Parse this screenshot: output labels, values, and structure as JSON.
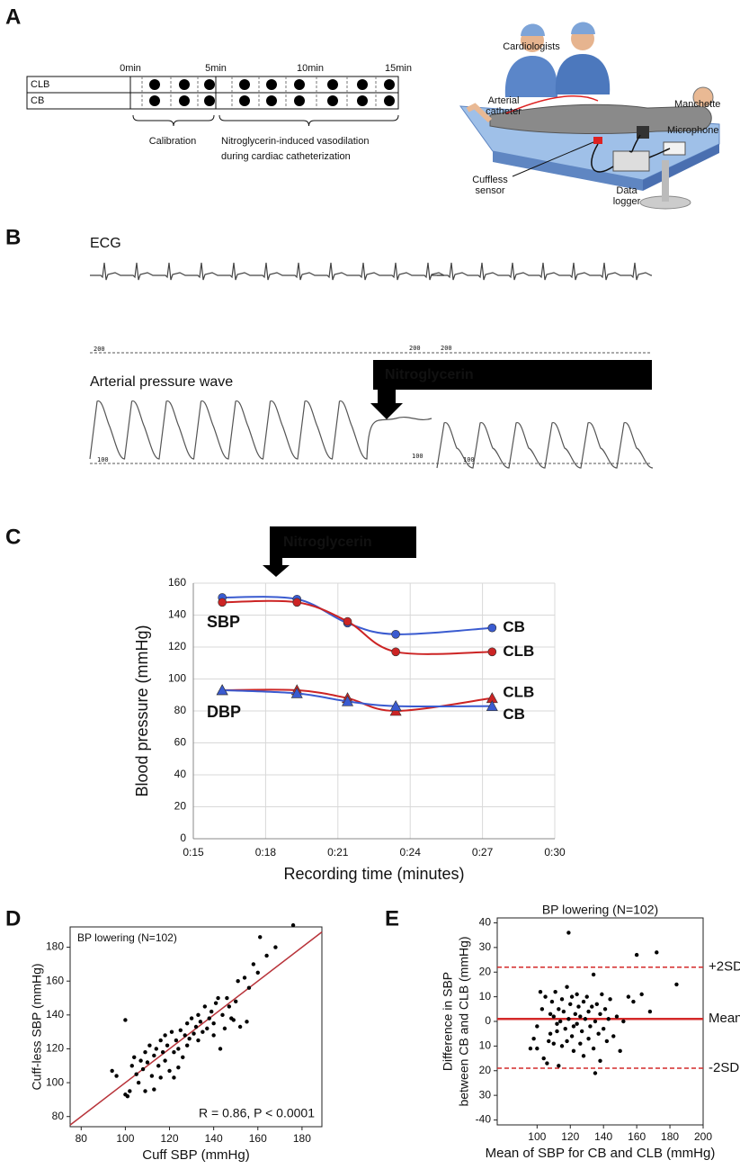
{
  "panel_labels": [
    "A",
    "B",
    "C",
    "D",
    "E"
  ],
  "panel_a": {
    "timeline": {
      "rows": [
        "CLB",
        "CB"
      ],
      "times": [
        "0min",
        "5min",
        "10min",
        "15min"
      ],
      "phases": [
        [
          "Calibration"
        ],
        [
          "Nitroglycerin-induced vasodilation",
          "during cardiac catheterization"
        ]
      ]
    },
    "illustration_labels": [
      [
        "Cardiologists"
      ],
      [
        "Arterial",
        "catheter"
      ],
      [
        "Manchette"
      ],
      [
        "Microphone"
      ],
      [
        "Cuffless",
        "sensor"
      ],
      [
        "Data",
        "logger"
      ]
    ]
  },
  "panel_b": {
    "ecg_label": "ECG",
    "ecg_scale": [
      "200",
      "200",
      "200"
    ],
    "arterial_label": "Arterial pressure wave",
    "pressure_scale": [
      "100",
      "100",
      "100"
    ],
    "annotation": "Nitroglycerin"
  },
  "chart_data": [
    {
      "type": "line",
      "annotation": "Nitroglycerin",
      "y_label": "Blood pressure (mmHg)",
      "x_label": "Recording time (minutes)",
      "x": [
        16.2,
        19.3,
        21.4,
        23.4,
        27.4
      ],
      "xlim": [
        15,
        30
      ],
      "xticks": [
        {
          "value": 15,
          "label": "0:15"
        },
        {
          "value": 18,
          "label": "0:18"
        },
        {
          "value": 21,
          "label": "0:21"
        },
        {
          "value": 24,
          "label": "0:24"
        },
        {
          "value": 27,
          "label": "0:27"
        },
        {
          "value": 30,
          "label": "0:30"
        }
      ],
      "ylim": [
        0,
        160
      ],
      "yticks": [
        0,
        20,
        40,
        60,
        80,
        100,
        120,
        140,
        160
      ],
      "grid": true,
      "group_labels": [
        "SBP",
        "DBP"
      ],
      "series": [
        {
          "name": "CB",
          "color": "#3a5bd0",
          "marker": "circle",
          "values": [
            151,
            150,
            135,
            128,
            132
          ]
        },
        {
          "name": "CLB",
          "color": "#cc2424",
          "marker": "circle",
          "values": [
            148,
            148,
            136,
            117,
            117
          ]
        },
        {
          "name": "CLB",
          "color": "#cc2424",
          "marker": "triangle",
          "values": [
            93,
            93,
            88,
            80,
            88
          ]
        },
        {
          "name": "CB",
          "color": "#3a5bd0",
          "marker": "triangle",
          "values": [
            93,
            91,
            86,
            83,
            83
          ]
        }
      ]
    },
    {
      "type": "scatter",
      "annotations": [
        "BP lowering (N=102)",
        "R = 0.86, P < 0.0001"
      ],
      "x_label": "Cuff SBP (mmHg)",
      "y_label": "Cuff-less SBP (mmHg)",
      "color": "#000000",
      "diagonal_color": "#b8333a",
      "x": [
        94,
        96,
        100,
        101,
        102,
        103,
        104,
        105,
        106,
        107,
        108,
        109,
        110,
        111,
        112,
        113,
        113,
        114,
        115,
        116,
        117,
        118,
        118,
        119,
        120,
        121,
        122,
        122,
        123,
        124,
        125,
        126,
        127,
        128,
        128,
        129,
        130,
        131,
        132,
        133,
        133,
        134,
        135,
        136,
        137,
        138,
        139,
        140,
        140,
        141,
        142,
        143,
        144,
        145,
        146,
        147,
        148,
        149,
        150,
        151,
        152,
        154,
        155,
        156,
        158,
        160,
        161,
        164,
        168,
        176,
        100,
        109,
        116,
        124
      ],
      "values": [
        107,
        104,
        137,
        92,
        95,
        110,
        115,
        105,
        100,
        113,
        108,
        118,
        112,
        122,
        104,
        96,
        116,
        120,
        110,
        125,
        118,
        113,
        128,
        122,
        107,
        130,
        118,
        103,
        125,
        120,
        131,
        115,
        128,
        135,
        122,
        126,
        138,
        129,
        133,
        125,
        140,
        136,
        130,
        145,
        132,
        138,
        142,
        128,
        135,
        147,
        150,
        120,
        140,
        132,
        150,
        145,
        138,
        137,
        148,
        160,
        133,
        162,
        136,
        156,
        170,
        165,
        186,
        175,
        180,
        193,
        93,
        95,
        103,
        109
      ],
      "xlim": [
        75,
        189
      ],
      "xticks": [
        80,
        100,
        120,
        140,
        160,
        180
      ],
      "ylim": [
        74,
        192
      ],
      "yticks": [
        80,
        100,
        120,
        140,
        160,
        180
      ]
    },
    {
      "type": "scatter",
      "title": "BP lowering (N=102)",
      "x_label": "Mean of SBP for CB and CLB (mmHg)",
      "y_label": [
        "Difference in SBP",
        "between CB and CLB (mmHg)"
      ],
      "color": "#000000",
      "x": [
        96,
        98,
        100,
        102,
        103,
        104,
        105,
        106,
        107,
        108,
        108,
        109,
        110,
        110,
        111,
        112,
        113,
        113,
        114,
        115,
        115,
        116,
        117,
        118,
        118,
        119,
        119,
        120,
        121,
        121,
        122,
        123,
        124,
        124,
        125,
        126,
        126,
        127,
        128,
        128,
        129,
        130,
        131,
        131,
        132,
        133,
        134,
        134,
        135,
        135,
        136,
        137,
        138,
        138,
        139,
        140,
        141,
        142,
        143,
        144,
        146,
        148,
        150,
        152,
        155,
        158,
        160,
        163,
        168,
        172,
        184,
        100,
        112,
        122
      ],
      "values": [
        -11,
        -7,
        -2,
        12,
        5,
        -15,
        10,
        -17,
        -8,
        3,
        -5,
        8,
        -9,
        2,
        12,
        -4,
        5,
        -18,
        0,
        -10,
        9,
        4,
        -3,
        14,
        -8,
        1,
        36,
        7,
        -6,
        10,
        -12,
        3,
        -1,
        11,
        6,
        -9,
        2,
        -4,
        8,
        -14,
        1,
        10,
        -7,
        4,
        -2,
        6,
        -11,
        19,
        0,
        -21,
        7,
        -5,
        3,
        -16,
        11,
        -3,
        5,
        -8,
        1,
        9,
        -6,
        2,
        -12,
        0,
        10,
        8,
        27,
        11,
        4,
        28,
        15,
        -11,
        -1,
        -2
      ],
      "xlim": [
        76,
        200
      ],
      "xticks": [
        100,
        120,
        140,
        160,
        180,
        200
      ],
      "ylim": [
        -42,
        42
      ],
      "yticks": [
        {
          "value": -40,
          "label": "-40"
        },
        {
          "value": -30,
          "label": "30"
        },
        {
          "value": -20,
          "label": "20"
        },
        {
          "value": -10,
          "label": "10"
        },
        0,
        10,
        20,
        30,
        40
      ],
      "reference_lines": [
        {
          "label": "+2SD",
          "value": 22,
          "style": "dashed",
          "color": "#d42a2a"
        },
        {
          "label": "Mean",
          "value": 1,
          "style": "solid",
          "color": "#d42a2a"
        },
        {
          "label": "-2SD",
          "value": -19,
          "style": "dashed",
          "color": "#d42a2a"
        }
      ]
    }
  ]
}
